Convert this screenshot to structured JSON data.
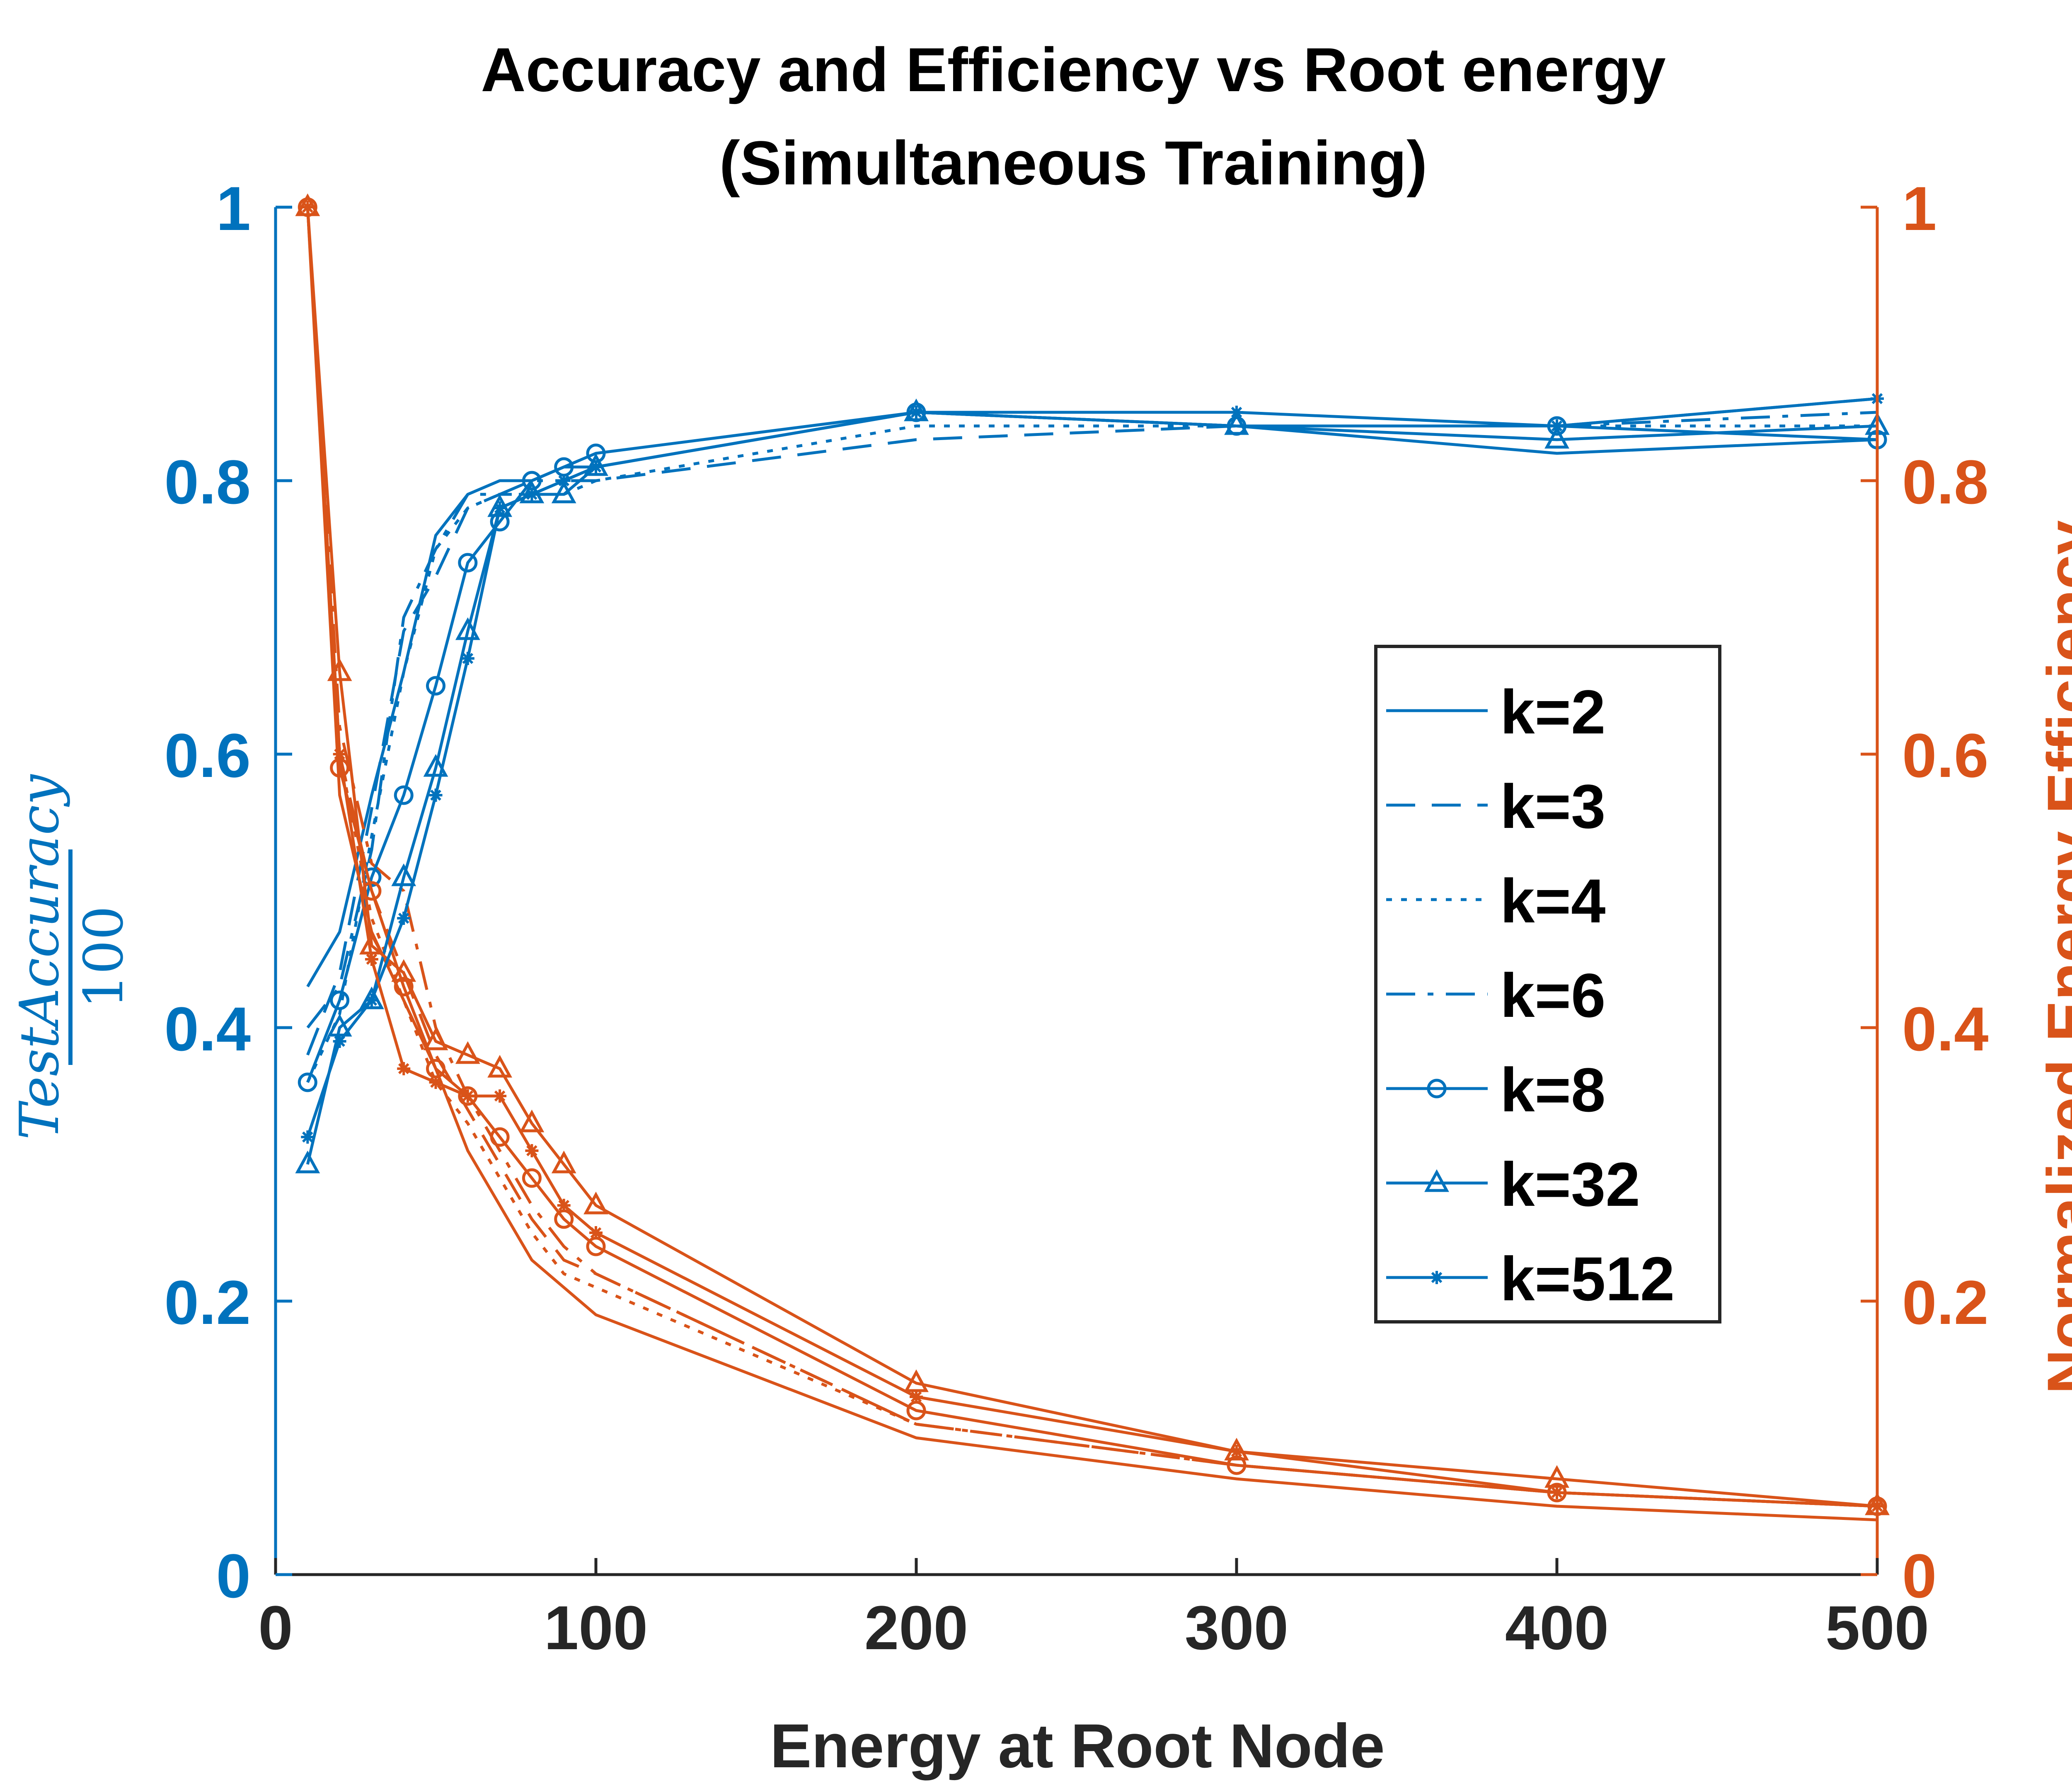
{
  "chart_data": {
    "type": "line",
    "title_lines": [
      "Accuracy and Efficiency vs Root energy",
      "(Simultaneous Training)"
    ],
    "xlabel": "Energy at Root Node",
    "ylabel_left": {
      "numerator": "TestAccuracy",
      "denominator": "100"
    },
    "ylabel_right": "Normalized Energy Efficiency",
    "xlim": [
      0,
      500
    ],
    "ylim_left": [
      0,
      1
    ],
    "ylim_right": [
      0,
      1
    ],
    "x_ticks": [
      "0",
      "100",
      "200",
      "300",
      "400",
      "500"
    ],
    "y_ticks_left": [
      "0",
      "0.2",
      "0.4",
      "0.6",
      "0.8",
      "1"
    ],
    "y_ticks_right": [
      "0",
      "0.2",
      "0.4",
      "0.6",
      "0.8",
      "1"
    ],
    "grid": false,
    "legend_position": "center-right",
    "colors": {
      "accuracy": "#0072BD",
      "efficiency": "#D95319",
      "axis": "#262626"
    },
    "series": [
      {
        "name": "k=2",
        "line_style": "solid",
        "marker": "none",
        "accuracy": {
          "x": [
            10,
            20,
            30,
            40,
            50,
            60,
            70,
            80,
            90,
            100,
            200,
            300,
            400,
            500
          ],
          "y": [
            0.43,
            0.47,
            0.57,
            0.66,
            0.76,
            0.79,
            0.8,
            0.8,
            0.81,
            0.81,
            0.85,
            0.84,
            0.82,
            0.83
          ]
        },
        "efficiency": {
          "x": [
            10,
            20,
            30,
            40,
            50,
            60,
            70,
            80,
            90,
            100,
            200,
            300,
            400,
            500
          ],
          "y": [
            1.0,
            0.57,
            0.47,
            0.42,
            0.37,
            0.31,
            0.27,
            0.23,
            0.21,
            0.19,
            0.1,
            0.07,
            0.05,
            0.04
          ]
        }
      },
      {
        "name": "k=3",
        "line_style": "dashed",
        "marker": "none",
        "accuracy": {
          "x": [
            10,
            20,
            30,
            40,
            50,
            60,
            70,
            80,
            90,
            100,
            200,
            300,
            400,
            500
          ],
          "y": [
            0.38,
            0.44,
            0.56,
            0.69,
            0.73,
            0.78,
            0.79,
            0.79,
            0.8,
            0.8,
            0.83,
            0.84,
            0.84,
            0.86
          ]
        },
        "efficiency": {
          "x": [
            10,
            20,
            30,
            40,
            50,
            60,
            70,
            80,
            90,
            100,
            200,
            300,
            400,
            500
          ],
          "y": [
            1.0,
            0.6,
            0.5,
            0.44,
            0.38,
            0.34,
            0.3,
            0.26,
            0.23,
            0.22,
            0.11,
            0.08,
            0.06,
            0.05
          ]
        }
      },
      {
        "name": "k=4",
        "line_style": "dotted",
        "marker": "none",
        "accuracy": {
          "x": [
            10,
            20,
            30,
            40,
            50,
            60,
            70,
            80,
            90,
            100,
            200,
            300,
            400,
            500
          ],
          "y": [
            0.36,
            0.41,
            0.54,
            0.66,
            0.75,
            0.78,
            0.79,
            0.79,
            0.79,
            0.8,
            0.84,
            0.84,
            0.84,
            0.84
          ]
        },
        "efficiency": {
          "x": [
            10,
            20,
            30,
            40,
            50,
            60,
            70,
            80,
            90,
            100,
            200,
            300,
            400,
            500
          ],
          "y": [
            1.0,
            0.6,
            0.48,
            0.42,
            0.36,
            0.33,
            0.29,
            0.25,
            0.22,
            0.21,
            0.11,
            0.08,
            0.06,
            0.05
          ]
        }
      },
      {
        "name": "k=6",
        "line_style": "dashdot",
        "marker": "none",
        "accuracy": {
          "x": [
            10,
            20,
            30,
            40,
            50,
            60,
            70,
            80,
            90,
            100,
            200,
            300,
            400,
            500
          ],
          "y": [
            0.4,
            0.43,
            0.53,
            0.7,
            0.75,
            0.79,
            0.79,
            0.8,
            0.8,
            0.81,
            0.85,
            0.84,
            0.84,
            0.85
          ]
        },
        "efficiency": {
          "x": [
            10,
            20,
            30,
            40,
            50,
            60,
            70,
            80,
            90,
            100,
            200,
            300,
            400,
            500
          ],
          "y": [
            1.0,
            0.62,
            0.52,
            0.5,
            0.4,
            0.35,
            0.31,
            0.27,
            0.24,
            0.22,
            0.11,
            0.08,
            0.06,
            0.05
          ]
        }
      },
      {
        "name": "k=8",
        "line_style": "solid",
        "marker": "circle",
        "accuracy": {
          "x": [
            10,
            20,
            30,
            40,
            50,
            60,
            70,
            80,
            90,
            100,
            200,
            300,
            400,
            500
          ],
          "y": [
            0.36,
            0.42,
            0.51,
            0.57,
            0.65,
            0.74,
            0.77,
            0.8,
            0.81,
            0.82,
            0.85,
            0.84,
            0.84,
            0.83
          ]
        },
        "efficiency": {
          "x": [
            10,
            20,
            30,
            40,
            50,
            60,
            70,
            80,
            90,
            100,
            200,
            300,
            400,
            500
          ],
          "y": [
            1.0,
            0.59,
            0.5,
            0.43,
            0.37,
            0.35,
            0.32,
            0.29,
            0.26,
            0.24,
            0.12,
            0.08,
            0.06,
            0.05
          ]
        }
      },
      {
        "name": "k=32",
        "line_style": "solid",
        "marker": "triangle",
        "accuracy": {
          "x": [
            10,
            20,
            30,
            40,
            50,
            60,
            70,
            80,
            90,
            100,
            200,
            300,
            400,
            500
          ],
          "y": [
            0.3,
            0.4,
            0.42,
            0.51,
            0.59,
            0.69,
            0.78,
            0.79,
            0.79,
            0.81,
            0.85,
            0.84,
            0.83,
            0.84
          ]
        },
        "efficiency": {
          "x": [
            10,
            20,
            30,
            40,
            50,
            60,
            70,
            80,
            90,
            100,
            200,
            300,
            400,
            500
          ],
          "y": [
            1.0,
            0.66,
            0.46,
            0.44,
            0.39,
            0.38,
            0.37,
            0.33,
            0.3,
            0.27,
            0.14,
            0.09,
            0.07,
            0.05
          ]
        }
      },
      {
        "name": "k=512",
        "line_style": "solid",
        "marker": "star",
        "accuracy": {
          "x": [
            10,
            20,
            30,
            40,
            50,
            60,
            70,
            80,
            90,
            100,
            200,
            300,
            400,
            500
          ],
          "y": [
            0.32,
            0.39,
            0.42,
            0.48,
            0.57,
            0.67,
            0.78,
            0.79,
            0.8,
            0.81,
            0.85,
            0.85,
            0.84,
            0.86
          ]
        },
        "efficiency": {
          "x": [
            10,
            20,
            30,
            40,
            50,
            60,
            70,
            80,
            90,
            100,
            200,
            300,
            400,
            500
          ],
          "y": [
            1.0,
            0.6,
            0.45,
            0.37,
            0.36,
            0.35,
            0.35,
            0.31,
            0.27,
            0.25,
            0.13,
            0.09,
            0.06,
            0.05
          ]
        }
      }
    ]
  }
}
